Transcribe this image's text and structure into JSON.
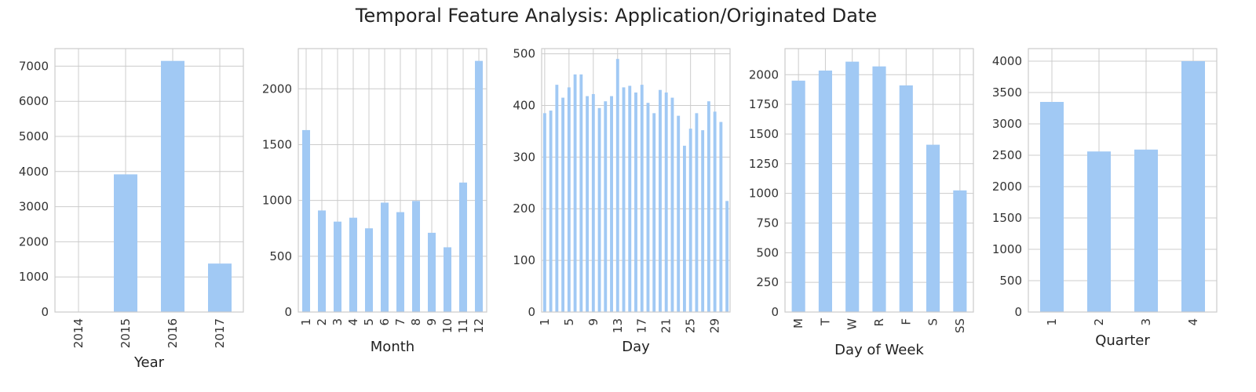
{
  "figure": {
    "title": "Temporal Feature Analysis: Application/Originated Date",
    "bar_color": "#a1c9f4",
    "grid_color": "#cccccc"
  },
  "chart_data": [
    {
      "type": "bar",
      "xlabel": "Year",
      "categories": [
        "2014",
        "2015",
        "2016",
        "2017"
      ],
      "values": [
        0,
        3920,
        7150,
        1380
      ],
      "ylim": [
        0,
        7500
      ],
      "yticks": [
        0,
        1000,
        2000,
        3000,
        4000,
        5000,
        6000,
        7000
      ],
      "tick_rotation": 90,
      "grid": true
    },
    {
      "type": "bar",
      "xlabel": "Month",
      "categories": [
        "1",
        "2",
        "3",
        "4",
        "5",
        "6",
        "7",
        "8",
        "9",
        "10",
        "11",
        "12"
      ],
      "values": [
        1630,
        910,
        810,
        845,
        750,
        980,
        895,
        995,
        710,
        580,
        1160,
        2250
      ],
      "ylim": [
        0,
        2360
      ],
      "yticks": [
        0,
        500,
        1000,
        1500,
        2000
      ],
      "tick_rotation": 90,
      "grid": true
    },
    {
      "type": "bar",
      "xlabel": "Day",
      "categories": [
        "1",
        "2",
        "3",
        "4",
        "5",
        "6",
        "7",
        "8",
        "9",
        "10",
        "11",
        "12",
        "13",
        "14",
        "15",
        "16",
        "17",
        "18",
        "19",
        "20",
        "21",
        "22",
        "23",
        "24",
        "25",
        "26",
        "27",
        "28",
        "29",
        "30",
        "31"
      ],
      "visible_tick_labels": [
        "1",
        "5",
        "9",
        "13",
        "17",
        "21",
        "25",
        "29"
      ],
      "values": [
        385,
        390,
        440,
        415,
        435,
        460,
        460,
        418,
        422,
        395,
        408,
        418,
        490,
        435,
        438,
        425,
        440,
        405,
        385,
        430,
        425,
        415,
        380,
        322,
        355,
        385,
        352,
        408,
        388,
        368,
        215
      ],
      "ylim": [
        0,
        510
      ],
      "yticks": [
        0,
        100,
        200,
        300,
        400,
        500
      ],
      "tick_rotation": 90,
      "grid": true
    },
    {
      "type": "bar",
      "xlabel": "Day of Week",
      "categories": [
        "M",
        "T",
        "W",
        "R",
        "F",
        "S",
        "SS"
      ],
      "values": [
        1950,
        2035,
        2110,
        2070,
        1910,
        1410,
        1025
      ],
      "ylim": [
        0,
        2220
      ],
      "yticks": [
        0,
        250,
        500,
        750,
        1000,
        1250,
        1500,
        1750,
        2000
      ],
      "tick_rotation": 90,
      "grid": true
    },
    {
      "type": "bar",
      "xlabel": "Quarter",
      "categories": [
        "1",
        "2",
        "3",
        "4"
      ],
      "values": [
        3350,
        2560,
        2590,
        4000
      ],
      "ylim": [
        0,
        4200
      ],
      "yticks": [
        0,
        500,
        1000,
        1500,
        2000,
        2500,
        3000,
        3500,
        4000
      ],
      "tick_rotation": 90,
      "grid": true
    }
  ]
}
